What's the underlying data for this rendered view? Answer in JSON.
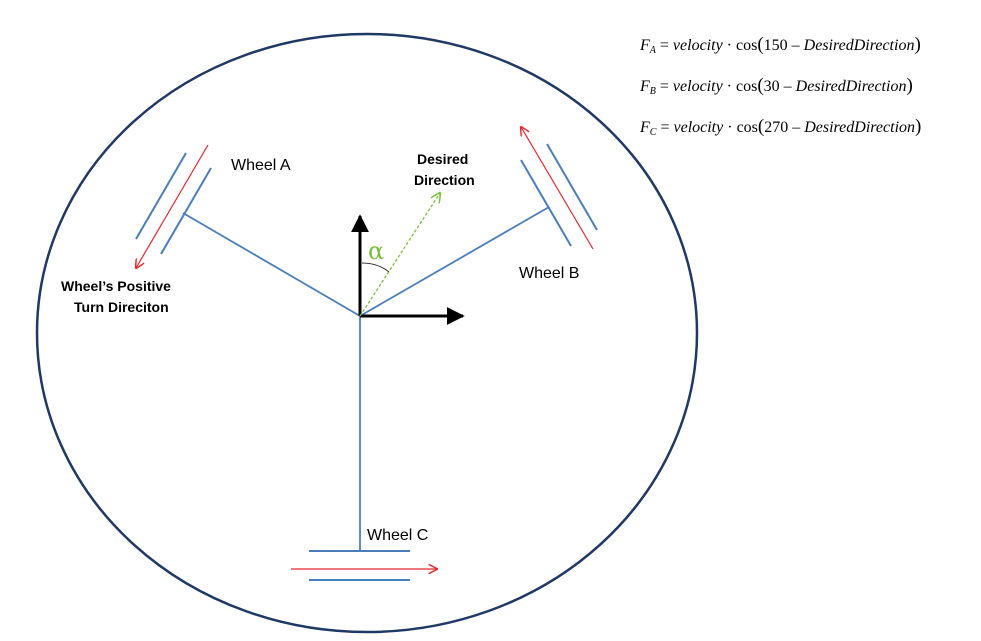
{
  "labels": {
    "wheel_a": "Wheel A",
    "wheel_b": "Wheel B",
    "wheel_c": "Wheel C",
    "desired_direction_line1": "Desired",
    "desired_direction_line2": "Direction",
    "positive_turn_line1": "Wheel’s Positive",
    "positive_turn_line2": "Turn Direciton",
    "angle_symbol": "α"
  },
  "formulas": [
    {
      "subscript": "A",
      "force": "F",
      "velocity": "velocity",
      "cos": "cos",
      "angle": "150",
      "direction": "DesiredDirection"
    },
    {
      "subscript": "B",
      "force": "F",
      "velocity": "velocity",
      "cos": "cos",
      "angle": "30",
      "direction": "DesiredDirection"
    },
    {
      "subscript": "C",
      "force": "F",
      "velocity": "velocity",
      "cos": "cos",
      "angle": "270",
      "direction": "DesiredDirection"
    }
  ],
  "colors": {
    "frame": "#1f3864",
    "structure": "#4a7ebb",
    "turn_arrow": "#e8262b",
    "desired_arrow": "#7bbf3a",
    "axes": "#000000"
  }
}
